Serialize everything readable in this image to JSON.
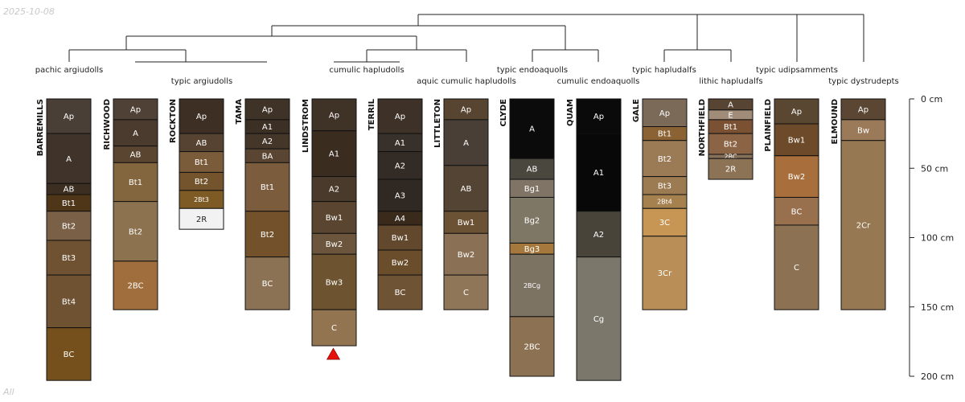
{
  "header_date": "2025-10-08",
  "footer_label": "All",
  "chart_data": {
    "type": "soil-profile-sketch",
    "depth_unit": "cm",
    "depth_ticks": [
      {
        "value": 0,
        "label": "0 cm"
      },
      {
        "value": 50,
        "label": "50 cm"
      },
      {
        "value": 100,
        "label": "100 cm"
      },
      {
        "value": 150,
        "label": "150 cm"
      },
      {
        "value": 200,
        "label": "200 cm"
      }
    ],
    "profiles": [
      {
        "name": "BARREMILLS",
        "horizons": [
          {
            "name": "Ap",
            "top": 0,
            "bottom": 25,
            "color": "#4a3f36"
          },
          {
            "name": "A",
            "top": 25,
            "bottom": 61,
            "color": "#40342a"
          },
          {
            "name": "AB",
            "top": 61,
            "bottom": 69,
            "color": "#3c2f22"
          },
          {
            "name": "Bt1",
            "top": 69,
            "bottom": 81,
            "color": "#4f3619"
          },
          {
            "name": "Bt2",
            "top": 81,
            "bottom": 102,
            "color": "#7a6047"
          },
          {
            "name": "Bt3",
            "top": 102,
            "bottom": 127,
            "color": "#6f5232"
          },
          {
            "name": "Bt4",
            "top": 127,
            "bottom": 165,
            "color": "#6f5232"
          },
          {
            "name": "BC",
            "top": 165,
            "bottom": 203,
            "color": "#75501c"
          }
        ]
      },
      {
        "name": "RICHWOOD",
        "horizons": [
          {
            "name": "Ap",
            "top": 0,
            "bottom": 15,
            "color": "#4f4136"
          },
          {
            "name": "A",
            "top": 15,
            "bottom": 34,
            "color": "#4b3b2e"
          },
          {
            "name": "AB",
            "top": 34,
            "bottom": 46,
            "color": "#5a4630"
          },
          {
            "name": "Bt1",
            "top": 46,
            "bottom": 74,
            "color": "#84663e"
          },
          {
            "name": "Bt2",
            "top": 74,
            "bottom": 117,
            "color": "#8d7250"
          },
          {
            "name": "2BC",
            "top": 117,
            "bottom": 152,
            "color": "#a06e3c"
          }
        ]
      },
      {
        "name": "ROCKTON",
        "horizons": [
          {
            "name": "Ap",
            "top": 0,
            "bottom": 25,
            "color": "#3d2f24"
          },
          {
            "name": "AB",
            "top": 25,
            "bottom": 38,
            "color": "#574332"
          },
          {
            "name": "Bt1",
            "top": 38,
            "bottom": 53,
            "color": "#7a5c3a"
          },
          {
            "name": "Bt2",
            "top": 53,
            "bottom": 66,
            "color": "#73542d"
          },
          {
            "name": "2Bt3",
            "top": 66,
            "bottom": 79,
            "color": "#7e5a24"
          },
          {
            "name": "2R",
            "top": 79,
            "bottom": 94,
            "color": "#f2f2f2"
          }
        ]
      },
      {
        "name": "TAMA",
        "horizons": [
          {
            "name": "Ap",
            "top": 0,
            "bottom": 15,
            "color": "#3f3226"
          },
          {
            "name": "A1",
            "top": 15,
            "bottom": 25,
            "color": "#3c2f24"
          },
          {
            "name": "A2",
            "top": 25,
            "bottom": 36,
            "color": "#45362a"
          },
          {
            "name": "BA",
            "top": 36,
            "bottom": 46,
            "color": "#5a4532"
          },
          {
            "name": "Bt1",
            "top": 46,
            "bottom": 81,
            "color": "#7b5d3e"
          },
          {
            "name": "Bt2",
            "top": 81,
            "bottom": 114,
            "color": "#73512b"
          },
          {
            "name": "BC",
            "top": 114,
            "bottom": 152,
            "color": "#8c7254"
          }
        ]
      },
      {
        "name": "LINDSTROM",
        "bottom_marker": true,
        "horizons": [
          {
            "name": "Ap",
            "top": 0,
            "bottom": 23,
            "color": "#3f3227"
          },
          {
            "name": "A1",
            "top": 23,
            "bottom": 56,
            "color": "#3b2c20"
          },
          {
            "name": "A2",
            "top": 56,
            "bottom": 74,
            "color": "#4a3a2c"
          },
          {
            "name": "Bw1",
            "top": 74,
            "bottom": 97,
            "color": "#5a4530"
          },
          {
            "name": "Bw2",
            "top": 97,
            "bottom": 112,
            "color": "#6b553c"
          },
          {
            "name": "Bw3",
            "top": 112,
            "bottom": 152,
            "color": "#6e5331"
          },
          {
            "name": "C",
            "top": 152,
            "bottom": 178,
            "color": "#927451"
          }
        ]
      },
      {
        "name": "TERRIL",
        "horizons": [
          {
            "name": "Ap",
            "top": 0,
            "bottom": 25,
            "color": "#3d3128"
          },
          {
            "name": "A1",
            "top": 25,
            "bottom": 38,
            "color": "#38302a"
          },
          {
            "name": "A2",
            "top": 38,
            "bottom": 58,
            "color": "#332b25"
          },
          {
            "name": "A3",
            "top": 58,
            "bottom": 81,
            "color": "#302823"
          },
          {
            "name": "A4",
            "top": 81,
            "bottom": 91,
            "color": "#3a2a1c"
          },
          {
            "name": "Bw1",
            "top": 91,
            "bottom": 109,
            "color": "#62482d"
          },
          {
            "name": "Bw2",
            "top": 109,
            "bottom": 127,
            "color": "#6a4d2b"
          },
          {
            "name": "BC",
            "top": 127,
            "bottom": 152,
            "color": "#6e5434"
          }
        ]
      },
      {
        "name": "LITTLETON",
        "horizons": [
          {
            "name": "Ap",
            "top": 0,
            "bottom": 15,
            "color": "#584531"
          },
          {
            "name": "A",
            "top": 15,
            "bottom": 48,
            "color": "#4a3f37"
          },
          {
            "name": "AB",
            "top": 48,
            "bottom": 81,
            "color": "#544433"
          },
          {
            "name": "Bw1",
            "top": 81,
            "bottom": 97,
            "color": "#6c5234"
          },
          {
            "name": "Bw2",
            "top": 97,
            "bottom": 127,
            "color": "#8a7055"
          },
          {
            "name": "C",
            "top": 127,
            "bottom": 152,
            "color": "#8f7658"
          }
        ]
      },
      {
        "name": "CLYDE",
        "horizons": [
          {
            "name": "A",
            "top": 0,
            "bottom": 43,
            "color": "#0b0b0b"
          },
          {
            "name": "AB",
            "top": 43,
            "bottom": 58,
            "color": "#4a473f"
          },
          {
            "name": "Bg1",
            "top": 58,
            "bottom": 71,
            "color": "#7f7466"
          },
          {
            "name": "Bg2",
            "top": 71,
            "bottom": 104,
            "color": "#7f7765"
          },
          {
            "name": "Bg3",
            "top": 104,
            "bottom": 112,
            "color": "#a5783d"
          },
          {
            "name": "2BCg",
            "top": 112,
            "bottom": 157,
            "color": "#7c7363"
          },
          {
            "name": "2BC",
            "top": 157,
            "bottom": 200,
            "color": "#8c7252"
          }
        ]
      },
      {
        "name": "QUAM",
        "horizons": [
          {
            "name": "Ap",
            "top": 0,
            "bottom": 25,
            "color": "#0a0a0a"
          },
          {
            "name": "A1",
            "top": 25,
            "bottom": 81,
            "color": "#080808"
          },
          {
            "name": "A2",
            "top": 81,
            "bottom": 114,
            "color": "#48443a"
          },
          {
            "name": "Cg",
            "top": 114,
            "bottom": 203,
            "color": "#7b786b"
          }
        ]
      },
      {
        "name": "GALE",
        "horizons": [
          {
            "name": "Ap",
            "top": 0,
            "bottom": 20,
            "color": "#7b6a58"
          },
          {
            "name": "Bt1",
            "top": 20,
            "bottom": 30,
            "color": "#8b6233"
          },
          {
            "name": "Bt2",
            "top": 30,
            "bottom": 56,
            "color": "#9b7a56"
          },
          {
            "name": "Bt3",
            "top": 56,
            "bottom": 69,
            "color": "#9c7a52"
          },
          {
            "name": "2Bt4",
            "top": 69,
            "bottom": 79,
            "color": "#a68150"
          },
          {
            "name": "3C",
            "top": 79,
            "bottom": 99,
            "color": "#c79655"
          },
          {
            "name": "3Cr",
            "top": 99,
            "bottom": 152,
            "color": "#b98f57"
          }
        ]
      },
      {
        "name": "NORTHFIELD",
        "horizons": [
          {
            "name": "A",
            "top": 0,
            "bottom": 8,
            "color": "#574432"
          },
          {
            "name": "E",
            "top": 8,
            "bottom": 15,
            "color": "#a08c78"
          },
          {
            "name": "Bt1",
            "top": 15,
            "bottom": 25,
            "color": "#7a5132"
          },
          {
            "name": "Bt2",
            "top": 25,
            "bottom": 40,
            "color": "#8a6445"
          },
          {
            "name": "2BC",
            "top": 40,
            "bottom": 43,
            "color": "#857059"
          },
          {
            "name": "2R",
            "top": 43,
            "bottom": 58,
            "color": "#8c7356"
          }
        ]
      },
      {
        "name": "PLAINFIELD",
        "horizons": [
          {
            "name": "Ap",
            "top": 0,
            "bottom": 18,
            "color": "#5a4732"
          },
          {
            "name": "Bw1",
            "top": 18,
            "bottom": 41,
            "color": "#6d4b2a"
          },
          {
            "name": "Bw2",
            "top": 41,
            "bottom": 71,
            "color": "#a86e3b"
          },
          {
            "name": "BC",
            "top": 71,
            "bottom": 91,
            "color": "#98704e"
          },
          {
            "name": "C",
            "top": 91,
            "bottom": 152,
            "color": "#8c7253"
          }
        ]
      },
      {
        "name": "ELMOUND",
        "horizons": [
          {
            "name": "Ap",
            "top": 0,
            "bottom": 15,
            "color": "#5a4632"
          },
          {
            "name": "Bw",
            "top": 15,
            "bottom": 30,
            "color": "#9a7a58"
          },
          {
            "name": "2Cr",
            "top": 30,
            "bottom": 152,
            "color": "#967853"
          }
        ]
      }
    ],
    "taxon_labels": [
      "pachic argiudolls",
      "typic argiudolls",
      "cumulic hapludolls",
      "aquic cumulic hapludolls",
      "typic endoaquolls",
      "cumulic endoaquolls",
      "typic hapludalfs",
      "lithic hapludalfs",
      "typic udipsamments",
      "typic dystrudepts"
    ]
  }
}
